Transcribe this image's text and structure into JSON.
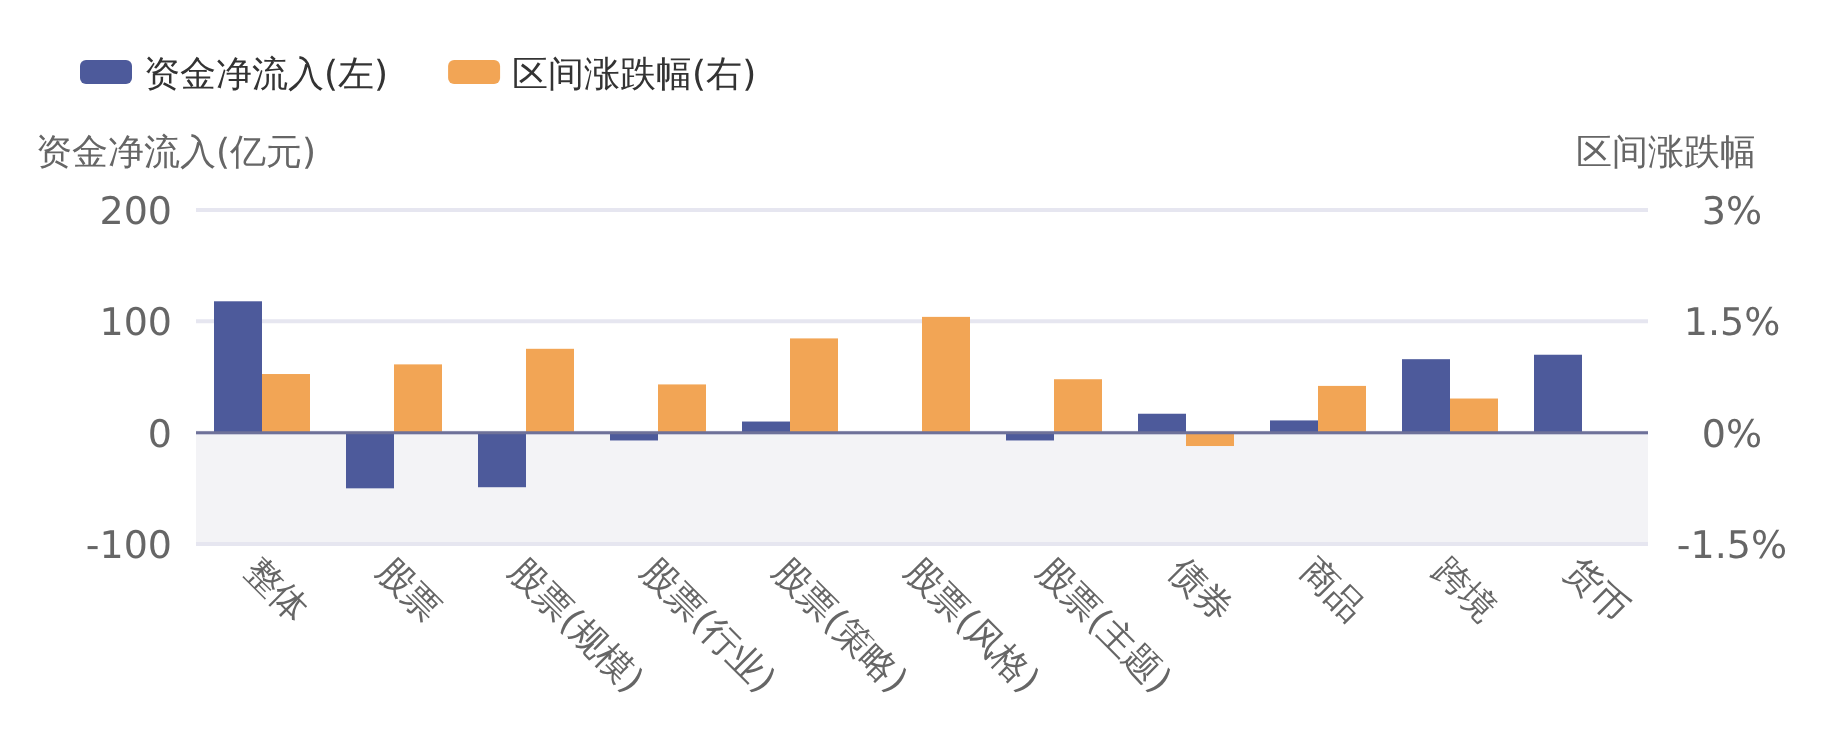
{
  "chart_data": {
    "type": "bar",
    "ylabel": "资金净流入(亿元)",
    "y2label": "区间涨跌幅",
    "categories": [
      "整体",
      "股票",
      "股票(规模)",
      "股票(行业)",
      "股票(策略)",
      "股票(风格)",
      "股票(主题)",
      "债券",
      "商品",
      "跨境",
      "货币"
    ],
    "series": [
      {
        "name": "资金净流入(左)",
        "color": "#4d5a9b",
        "values": [
          118,
          -50,
          -49,
          -7,
          10,
          0,
          -7,
          17,
          11,
          66,
          70
        ]
      },
      {
        "name": "区间涨跌幅(右)",
        "color": "#f2a555",
        "axis": "y2",
        "values": [
          0.79,
          0.92,
          1.13,
          0.65,
          1.27,
          1.56,
          0.72,
          -0.18,
          0.63,
          0.46,
          0
        ]
      }
    ],
    "ylim": [
      -100,
      200
    ],
    "yticks": [
      -100,
      0,
      100,
      200
    ],
    "y2lim": [
      -1.5,
      3
    ],
    "y2ticks": [
      {
        "value": -1.5,
        "label": "-1.5%"
      },
      {
        "value": 0,
        "label": "0%"
      },
      {
        "value": 1.5,
        "label": "1.5%"
      },
      {
        "value": 3,
        "label": "3%"
      }
    ],
    "ref_lines": [
      {
        "axis": "y",
        "value": 0,
        "color": "#6e7199"
      }
    ],
    "bands": [
      {
        "axis": "y",
        "from": -100,
        "to": 0,
        "color": "#f3f3f6"
      }
    ],
    "grid": "y",
    "legend": "top left"
  }
}
